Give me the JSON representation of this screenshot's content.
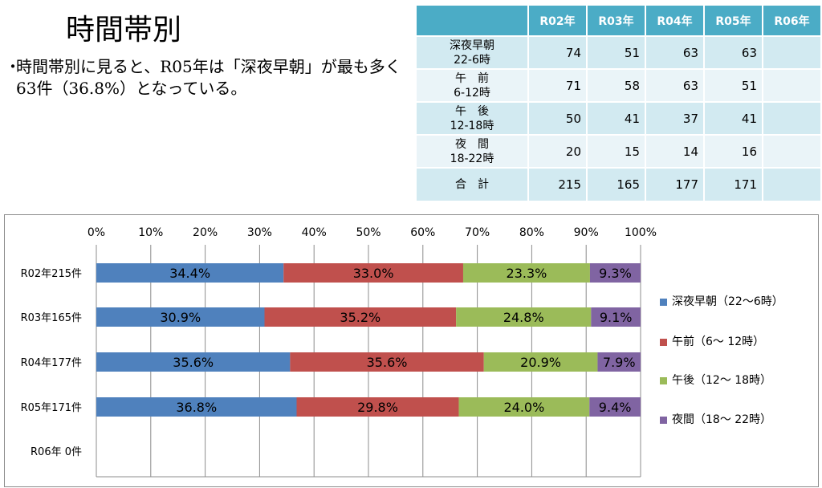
{
  "page": {
    "title": "時間帯別",
    "bullet_mark": "・",
    "bullet_text": "時間帯別に見ると、R05年は「深夜早朝」が最も多く63件（36.8%）となっている。"
  },
  "table": {
    "headers": [
      "",
      "R02年",
      "R03年",
      "R04年",
      "R05年",
      "R06年"
    ],
    "rows": [
      {
        "label1": "深夜早朝",
        "label2": "22-6時",
        "values": [
          "74",
          "51",
          "63",
          "63",
          ""
        ]
      },
      {
        "label1": "午　前",
        "label2": "6-12時",
        "values": [
          "71",
          "58",
          "63",
          "51",
          ""
        ]
      },
      {
        "label1": "午　後",
        "label2": "12-18時",
        "values": [
          "50",
          "41",
          "37",
          "41",
          ""
        ]
      },
      {
        "label1": "夜　間",
        "label2": "18-22時",
        "values": [
          "20",
          "15",
          "14",
          "16",
          ""
        ]
      }
    ],
    "total": {
      "label": "合　計",
      "values": [
        "215",
        "165",
        "177",
        "171",
        ""
      ]
    }
  },
  "chart_data": {
    "type": "bar",
    "orientation": "horizontal",
    "stacked": "percent",
    "categories": [
      "R02年215件",
      "R03年165件",
      "R04年177件",
      "R05年171件",
      "R06年  0件"
    ],
    "xlim": [
      0,
      100
    ],
    "xticks": [
      "0%",
      "10%",
      "20%",
      "30%",
      "40%",
      "50%",
      "60%",
      "70%",
      "80%",
      "90%",
      "100%"
    ],
    "grid": true,
    "legend_position": "right",
    "series": [
      {
        "name": "深夜早朝（22～6時）",
        "color": "#4f81bd",
        "values": [
          34.4,
          30.9,
          35.6,
          36.8,
          null
        ],
        "labels": [
          "34.4%",
          "30.9%",
          "35.6%",
          "36.8%",
          ""
        ]
      },
      {
        "name": "午前（6～ 12時）",
        "color": "#c0504d",
        "values": [
          33.0,
          35.2,
          35.6,
          29.8,
          null
        ],
        "labels": [
          "33.0%",
          "35.2%",
          "35.6%",
          "29.8%",
          ""
        ]
      },
      {
        "name": "午後（12～ 18時）",
        "color": "#9bbb59",
        "values": [
          23.3,
          24.8,
          20.9,
          24.0,
          null
        ],
        "labels": [
          "23.3%",
          "24.8%",
          "20.9%",
          "24.0%",
          ""
        ]
      },
      {
        "name": "夜間（18～ 22時）",
        "color": "#8064a2",
        "values": [
          9.3,
          9.1,
          7.9,
          9.4,
          null
        ],
        "labels": [
          "9.3%",
          "9.1%",
          "7.9%",
          "9.4%",
          ""
        ]
      }
    ]
  }
}
